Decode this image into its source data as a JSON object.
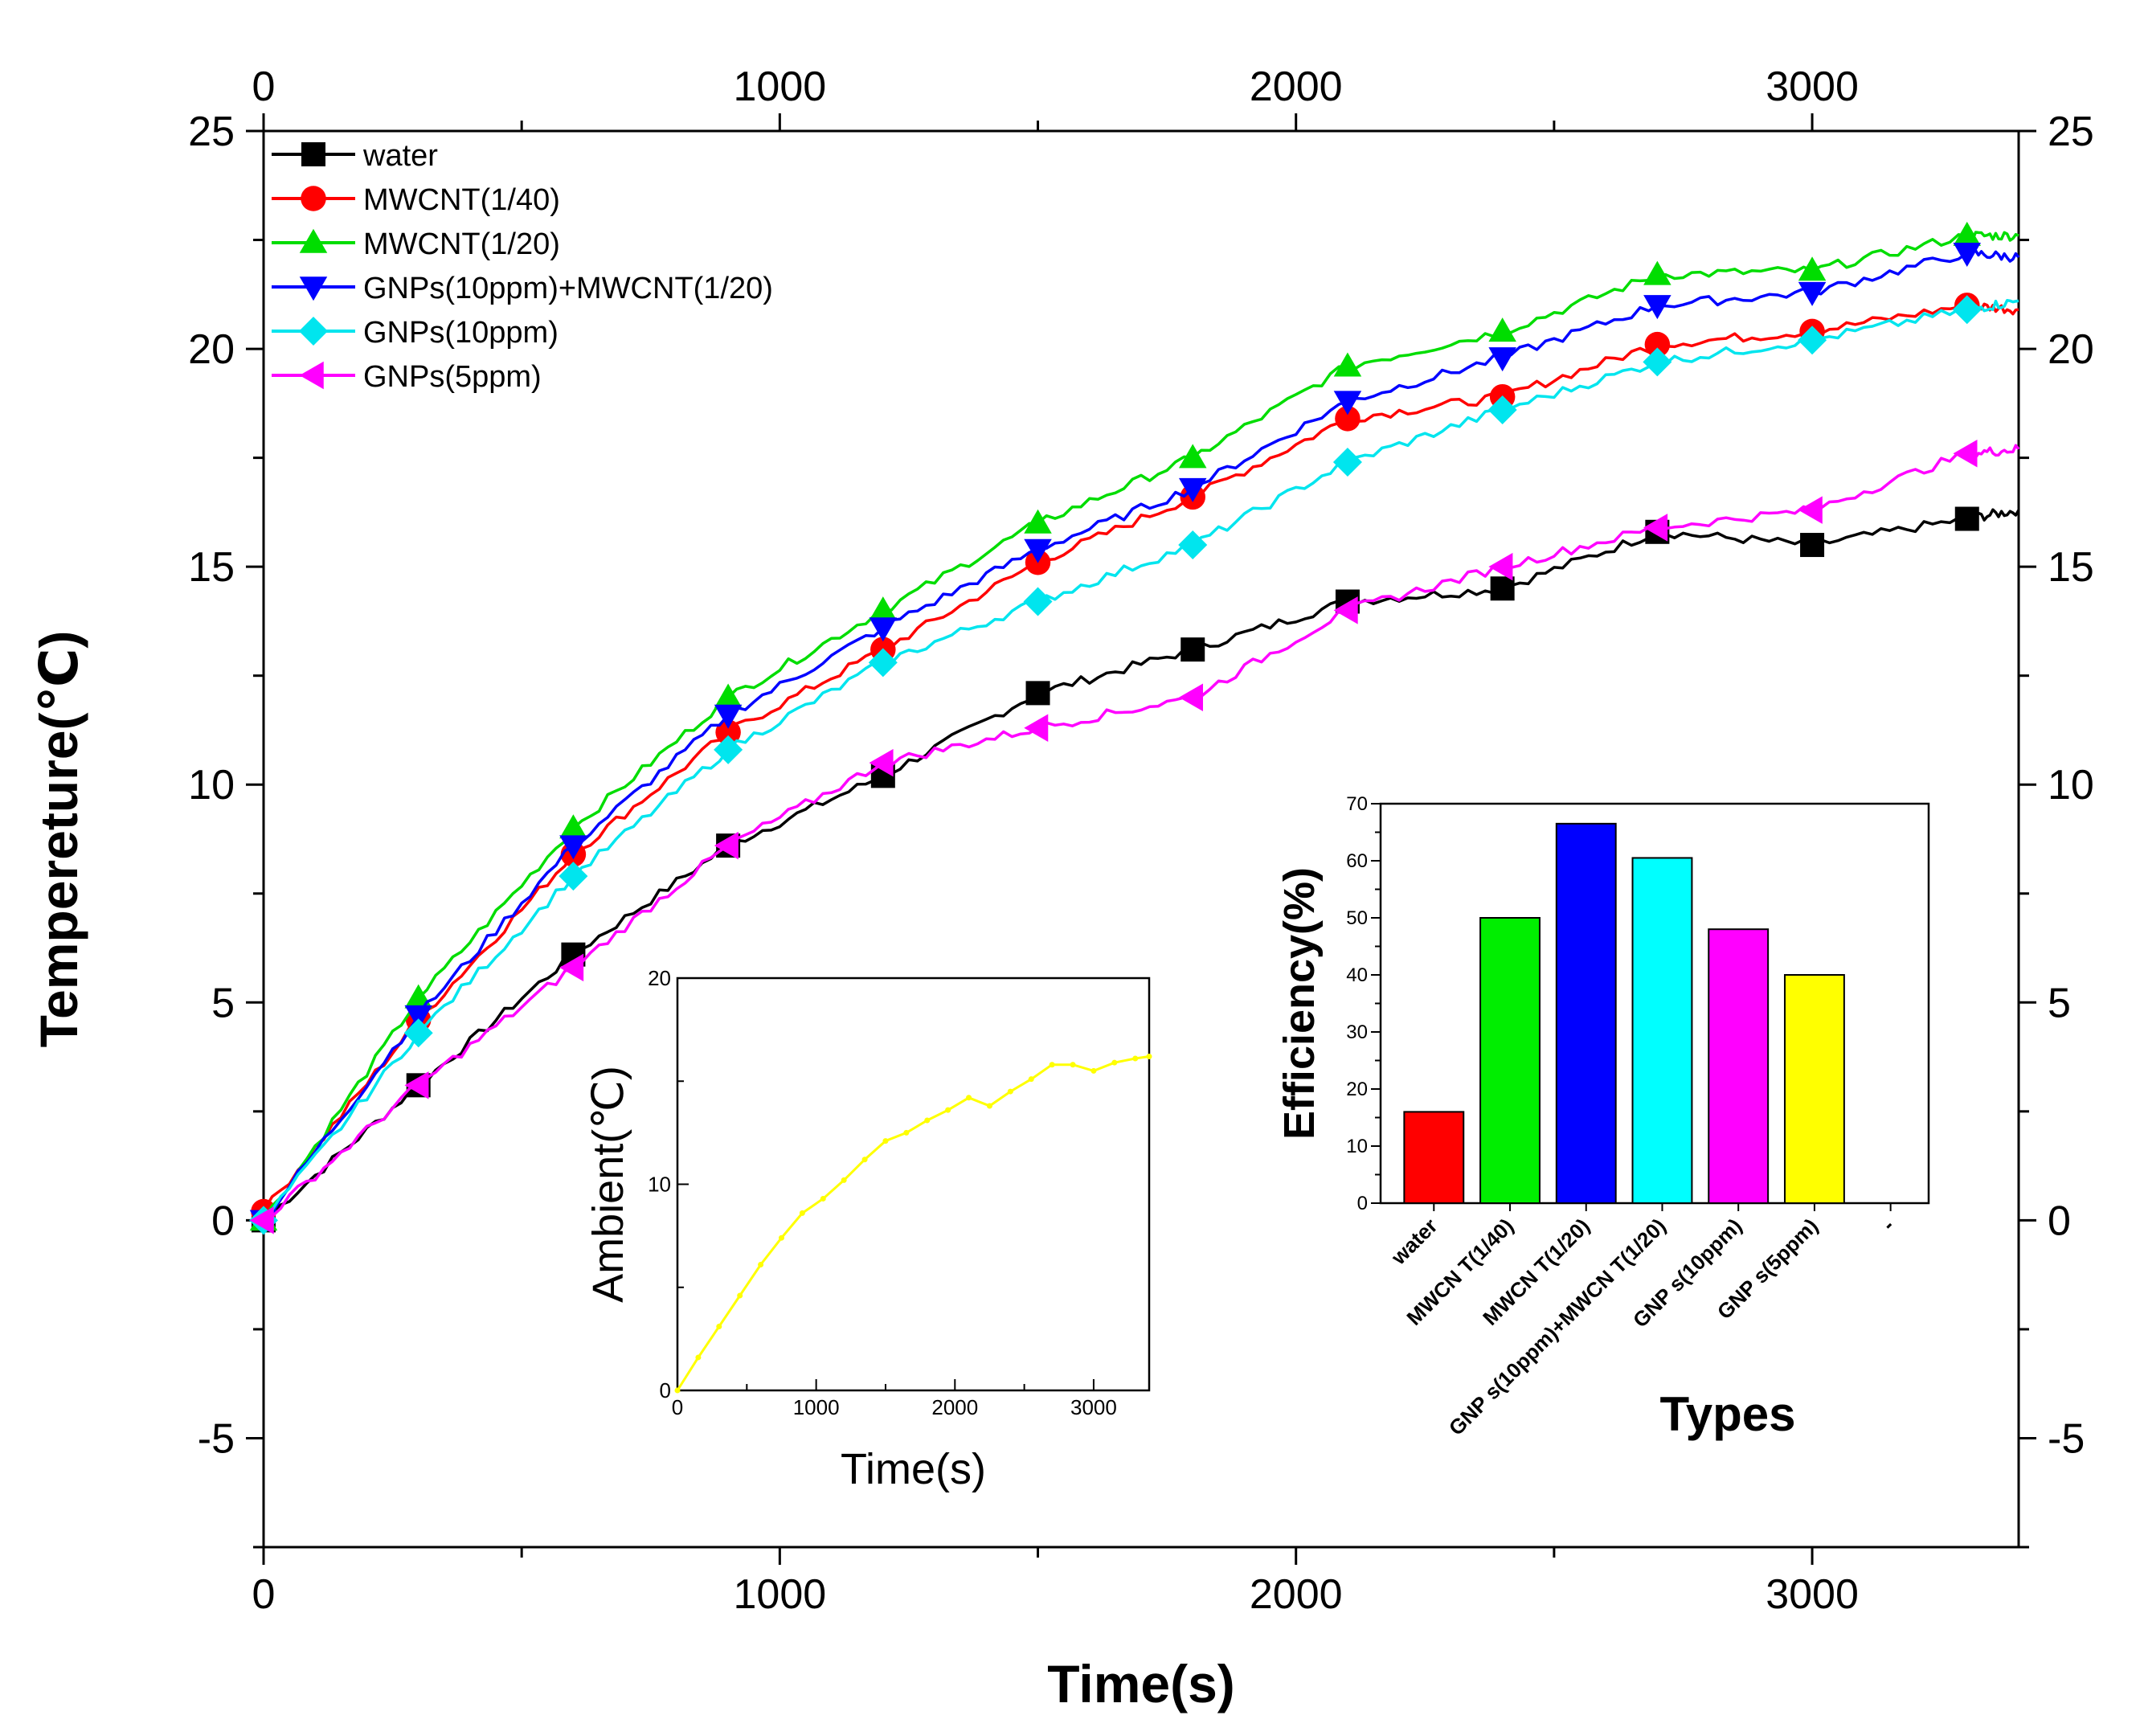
{
  "chart_data": [
    {
      "id": "main",
      "type": "line",
      "xlabel": "Time(s)",
      "ylabel": "Tempereture(℃)",
      "xlim": [
        0,
        3400
      ],
      "ylim": [
        -7.5,
        25
      ],
      "x_ticks": [
        0,
        1000,
        2000,
        3000
      ],
      "x_tick_labels": [
        "0",
        "1000",
        "2000",
        "3000"
      ],
      "y_ticks": [
        -5,
        0,
        5,
        10,
        15,
        20,
        25
      ],
      "y_tick_labels": [
        "-5",
        "0",
        "5",
        "10",
        "15",
        "20",
        "25"
      ],
      "legend_position": "top-left",
      "x": [
        0,
        300,
        600,
        900,
        1200,
        1500,
        1800,
        2100,
        2400,
        2700,
        3000,
        3300
      ],
      "series": [
        {
          "name": "water",
          "color": "#000000",
          "marker": "square",
          "values": [
            0,
            3.1,
            6.1,
            8.6,
            10.2,
            12.1,
            13.1,
            14.2,
            14.5,
            15.8,
            15.5,
            16.1
          ],
          "end_value": 16.3
        },
        {
          "name": "MWCNT(1/40)",
          "color": "#ff0000",
          "marker": "circle",
          "values": [
            0.2,
            4.6,
            8.4,
            11.2,
            13.1,
            15.1,
            16.6,
            18.4,
            18.9,
            20.1,
            20.4,
            21.0
          ],
          "end_value": 20.9
        },
        {
          "name": "MWCNT(1/20)",
          "color": "#00dd00",
          "marker": "triangle-up",
          "values": [
            0,
            5.1,
            9.0,
            12.0,
            14.0,
            16.0,
            17.5,
            19.6,
            20.4,
            21.7,
            21.8,
            22.6
          ],
          "end_value": 22.6
        },
        {
          "name": "GNPs(10ppm)+MWCNT(1/20)",
          "color": "#0000ff",
          "marker": "triangle-down",
          "values": [
            0,
            4.7,
            8.6,
            11.6,
            13.6,
            15.4,
            16.8,
            18.8,
            19.8,
            21.0,
            21.3,
            22.2
          ],
          "end_value": 22.1
        },
        {
          "name": "GNPs(10ppm)",
          "color": "#00e5ee",
          "marker": "diamond",
          "values": [
            0,
            4.3,
            7.9,
            10.8,
            12.8,
            14.2,
            15.5,
            17.4,
            18.6,
            19.7,
            20.2,
            20.9
          ],
          "end_value": 21.1
        },
        {
          "name": "GNPs(5ppm)",
          "color": "#ff00ff",
          "marker": "triangle-left",
          "values": [
            0,
            3.1,
            5.8,
            8.6,
            10.5,
            11.3,
            12.0,
            14.0,
            15.0,
            15.9,
            16.3,
            17.6
          ],
          "end_value": 17.7
        }
      ]
    },
    {
      "id": "ambient-inset",
      "type": "line",
      "xlabel": "Time(s)",
      "ylabel": "Ambient(℃)",
      "xlim": [
        0,
        3400
      ],
      "ylim": [
        0,
        20
      ],
      "x_ticks": [
        0,
        1000,
        2000,
        3000
      ],
      "x_tick_labels": [
        "0",
        "1000",
        "2000",
        "3000"
      ],
      "y_ticks": [
        0,
        10,
        20
      ],
      "y_tick_labels": [
        "0",
        "10",
        "20"
      ],
      "series": [
        {
          "name": "Ambient",
          "color": "#ffff00",
          "x": [
            0,
            150,
            300,
            450,
            600,
            750,
            900,
            1050,
            1200,
            1350,
            1500,
            1650,
            1800,
            1950,
            2100,
            2250,
            2400,
            2550,
            2700,
            2850,
            3000,
            3150,
            3300,
            3400
          ],
          "values": [
            0,
            1.6,
            3.1,
            4.6,
            6.1,
            7.4,
            8.6,
            9.3,
            10.2,
            11.2,
            12.1,
            12.5,
            13.1,
            13.6,
            14.2,
            13.8,
            14.5,
            15.1,
            15.8,
            15.8,
            15.5,
            15.9,
            16.1,
            16.2
          ]
        }
      ]
    },
    {
      "id": "efficiency-inset",
      "type": "bar",
      "xlabel": "Types",
      "ylabel": "Efficiency(%)",
      "ylim": [
        0,
        70
      ],
      "y_ticks": [
        0,
        10,
        20,
        30,
        40,
        50,
        60,
        70
      ],
      "y_tick_labels": [
        "0",
        "10",
        "20",
        "30",
        "40",
        "50",
        "60",
        "70"
      ],
      "categories": [
        "water",
        "MWCN T(1/40)",
        "MWCN T(1/20)",
        "GNP s(10ppm)+MWCN T(1/20)",
        "GNP s(10ppm)",
        "GNP s(5ppm)",
        "-"
      ],
      "values": [
        16,
        50,
        66.5,
        60.5,
        48,
        40,
        null
      ],
      "colors": [
        "#ff0000",
        "#00ee00",
        "#0000ff",
        "#00ffff",
        "#ff00ff",
        "#ffff00",
        "#ffffff"
      ]
    }
  ]
}
